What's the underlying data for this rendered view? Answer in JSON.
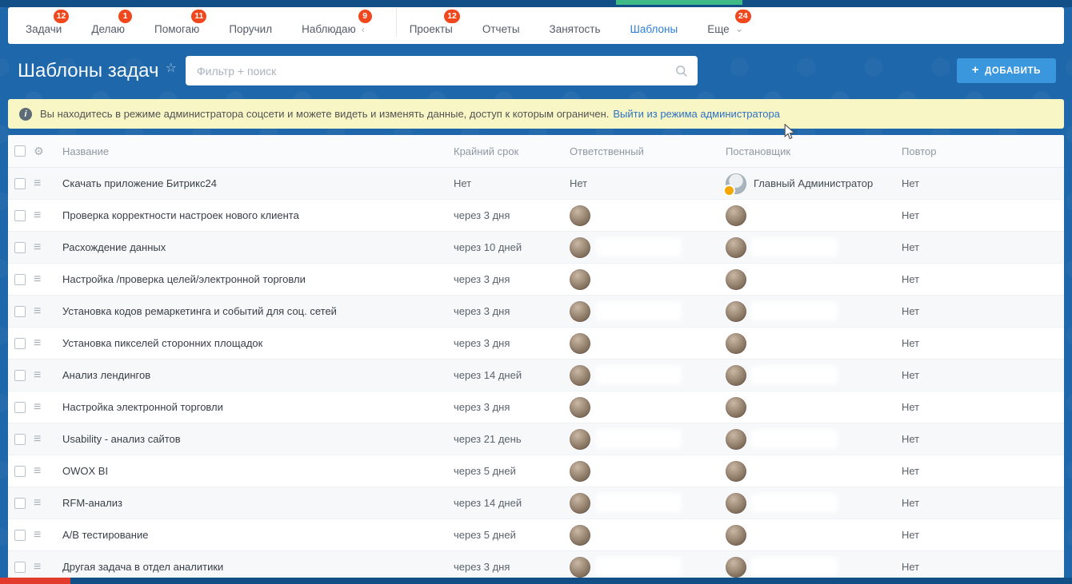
{
  "colors": {
    "background": "#1e67aa",
    "top_strip": "#114f86",
    "badge": "#f0471d",
    "active_tab": "#2e7fd5",
    "add_button": "#3b97dd",
    "banner_bg": "#f9f6c5",
    "link": "#2d71c4",
    "green_accent": "#3dba85",
    "red_accent": "#e23b2e"
  },
  "topbar": {
    "tabs": [
      {
        "key": "zadachi",
        "label": "Задачи",
        "badge": "12"
      },
      {
        "key": "delayu",
        "label": "Делаю",
        "badge": "1"
      },
      {
        "key": "pomogayu",
        "label": "Помогаю",
        "badge": "11"
      },
      {
        "key": "poruchil",
        "label": "Поручил"
      },
      {
        "key": "nablyudayu",
        "label": "Наблюдаю",
        "badge": "9",
        "collapse": true
      },
      {
        "divider": true
      },
      {
        "key": "proekty",
        "label": "Проекты",
        "badge": "12"
      },
      {
        "key": "otchety",
        "label": "Отчеты"
      },
      {
        "key": "zanyatost",
        "label": "Занятость"
      },
      {
        "key": "shablony",
        "label": "Шаблоны",
        "active": true
      },
      {
        "key": "eshche",
        "label": "Еще",
        "badge": "24",
        "chevron": true
      }
    ]
  },
  "header": {
    "title": "Шаблоны задач",
    "search_placeholder": "Фильтр + поиск",
    "add_button": "ДОБАВИТЬ"
  },
  "notice": {
    "text": "Вы находитесь в режиме администратора соцсети и можете видеть и изменять данные, доступ к которым ограничен.",
    "link": "Выйти из режима администратора"
  },
  "table": {
    "columns": [
      "Название",
      "Крайний срок",
      "Ответственный",
      "Постановщик",
      "Повтор"
    ],
    "rows": [
      {
        "name": "Скачать приложение Битрикс24",
        "deadline": "Нет",
        "responsible": {
          "kind": "none",
          "text": "Нет"
        },
        "originator": {
          "kind": "named",
          "name": "Главный Администратор",
          "admin": true
        },
        "repeat": "Нет"
      },
      {
        "name": "Проверка корректности настроек нового клиента",
        "deadline": "через 3 дня",
        "responsible": {
          "kind": "hidden"
        },
        "originator": {
          "kind": "hidden"
        },
        "repeat": "Нет"
      },
      {
        "name": "Расхождение данных",
        "deadline": "через 10 дней",
        "responsible": {
          "kind": "hidden"
        },
        "originator": {
          "kind": "hidden"
        },
        "repeat": "Нет"
      },
      {
        "name": "Настройка /проверка целей/электронной торговли",
        "deadline": "через 3 дня",
        "responsible": {
          "kind": "hidden"
        },
        "originator": {
          "kind": "hidden"
        },
        "repeat": "Нет"
      },
      {
        "name": "Установка кодов ремаркетинга и событий для соц. сетей",
        "deadline": "через 3 дня",
        "responsible": {
          "kind": "hidden"
        },
        "originator": {
          "kind": "hidden"
        },
        "repeat": "Нет"
      },
      {
        "name": "Установка пикселей сторонних площадок",
        "deadline": "через 3 дня",
        "responsible": {
          "kind": "hidden"
        },
        "originator": {
          "kind": "hidden"
        },
        "repeat": "Нет"
      },
      {
        "name": "Анализ лендингов",
        "deadline": "через 14 дней",
        "responsible": {
          "kind": "hidden"
        },
        "originator": {
          "kind": "hidden"
        },
        "repeat": "Нет"
      },
      {
        "name": "Настройка электронной торговли",
        "deadline": "через 3 дня",
        "responsible": {
          "kind": "hidden"
        },
        "originator": {
          "kind": "hidden"
        },
        "repeat": "Нет"
      },
      {
        "name": "Usability - анализ сайтов",
        "deadline": "через 21 день",
        "responsible": {
          "kind": "hidden"
        },
        "originator": {
          "kind": "hidden"
        },
        "repeat": "Нет"
      },
      {
        "name": "OWOX BI",
        "deadline": "через 5 дней",
        "responsible": {
          "kind": "hidden"
        },
        "originator": {
          "kind": "hidden"
        },
        "repeat": "Нет"
      },
      {
        "name": "RFM-анализ",
        "deadline": "через 14 дней",
        "responsible": {
          "kind": "hidden"
        },
        "originator": {
          "kind": "hidden"
        },
        "repeat": "Нет"
      },
      {
        "name": "A/B тестирование",
        "deadline": "через 5 дней",
        "responsible": {
          "kind": "hidden"
        },
        "originator": {
          "kind": "hidden"
        },
        "repeat": "Нет"
      },
      {
        "name": "Другая задача в отдел аналитики",
        "deadline": "через 3 дня",
        "responsible": {
          "kind": "hidden"
        },
        "originator": {
          "kind": "hidden"
        },
        "repeat": "Нет"
      }
    ]
  }
}
